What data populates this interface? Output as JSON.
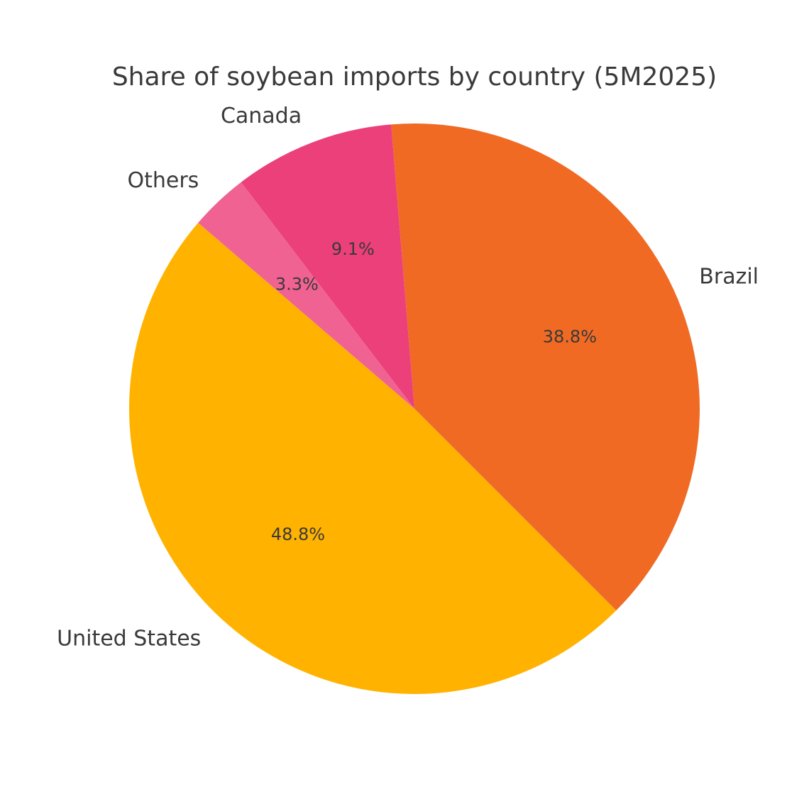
{
  "chart_data": {
    "type": "pie",
    "title": "Share of soybean imports by country (5M2025)",
    "slices": [
      {
        "label": "Brazil",
        "value": 38.8,
        "pct_label": "38.8%",
        "color": "#F06A24"
      },
      {
        "label": "Canada",
        "value": 9.1,
        "pct_label": "9.1%",
        "color": "#EC407A"
      },
      {
        "label": "Others",
        "value": 3.3,
        "pct_label": "3.3%",
        "color": "#F06292"
      },
      {
        "label": "United States",
        "value": 48.8,
        "pct_label": "48.8%",
        "color": "#FFB300"
      }
    ],
    "start_angle_deg": -45,
    "direction": "counterclockwise",
    "legend": "none"
  }
}
